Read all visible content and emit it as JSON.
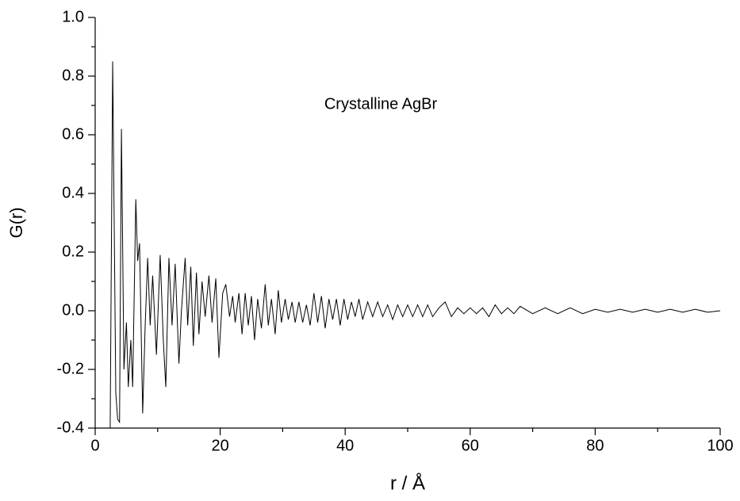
{
  "chart_data": {
    "type": "line",
    "annotation": "Crystalline AgBr",
    "x_label": "r / Å",
    "y_label": "G(r)",
    "color": "#000000",
    "xlim": [
      0,
      100
    ],
    "ylim": [
      -0.4,
      1.0
    ],
    "xticks": [
      0,
      20,
      40,
      60,
      80,
      100
    ],
    "xminorticks": [
      10,
      30,
      50,
      70,
      90
    ],
    "yticks": [
      -0.4,
      -0.2,
      {
        "value": 0,
        "label": "0.0"
      },
      0.2,
      0.4,
      0.6,
      0.8,
      {
        "value": 1,
        "label": "1.0"
      }
    ],
    "yminorticks": [
      -0.3,
      -0.1,
      0.1,
      0.3,
      0.5,
      0.7,
      0.9
    ],
    "x": [
      2.4,
      2.8,
      3.3,
      3.6,
      3.9,
      4.2,
      4.6,
      5.0,
      5.3,
      5.7,
      6.0,
      6.5,
      6.8,
      7.1,
      7.6,
      8.0,
      8.4,
      8.8,
      9.2,
      9.8,
      10.4,
      10.9,
      11.3,
      11.8,
      12.3,
      12.8,
      13.4,
      13.8,
      14.4,
      14.8,
      15.3,
      15.7,
      16.2,
      16.6,
      17.1,
      17.6,
      18.2,
      18.7,
      19.3,
      19.8,
      20.4,
      20.9,
      21.5,
      22.0,
      22.4,
      23.0,
      23.5,
      24.0,
      24.5,
      25.0,
      25.5,
      26.0,
      26.6,
      27.2,
      27.7,
      28.2,
      28.8,
      29.3,
      29.8,
      30.4,
      30.9,
      31.5,
      32.0,
      32.6,
      33.2,
      33.8,
      34.4,
      35.0,
      35.6,
      36.2,
      36.8,
      37.4,
      38.0,
      38.6,
      39.2,
      39.8,
      40.4,
      41.0,
      41.6,
      42.2,
      42.8,
      43.6,
      44.4,
      45.2,
      46.0,
      46.8,
      47.6,
      48.4,
      49.2,
      50.0,
      50.8,
      51.6,
      52.4,
      53.2,
      54.0,
      55.0,
      56.0,
      57.0,
      58.0,
      59.0,
      60.0,
      61.0,
      62.0,
      63.0,
      64.0,
      65.0,
      66.0,
      67.0,
      68.0,
      70,
      72,
      74,
      76,
      78,
      80,
      82,
      84,
      86,
      88,
      90,
      92,
      94,
      96,
      98,
      100
    ],
    "values": [
      -0.4,
      0.85,
      -0.28,
      -0.37,
      -0.38,
      0.62,
      -0.2,
      -0.04,
      -0.26,
      -0.1,
      -0.26,
      0.38,
      0.17,
      0.23,
      -0.35,
      -0.05,
      0.18,
      -0.05,
      0.12,
      -0.15,
      0.19,
      -0.1,
      -0.26,
      0.18,
      -0.05,
      0.16,
      -0.18,
      0.0,
      0.18,
      -0.05,
      0.15,
      -0.12,
      0.13,
      -0.08,
      0.1,
      -0.02,
      0.12,
      -0.04,
      0.11,
      -0.16,
      0.06,
      0.09,
      -0.02,
      0.05,
      -0.04,
      0.06,
      -0.08,
      0.06,
      -0.05,
      0.05,
      -0.1,
      0.04,
      -0.06,
      0.09,
      -0.05,
      0.04,
      -0.08,
      0.07,
      -0.04,
      0.04,
      -0.03,
      0.03,
      -0.04,
      0.03,
      -0.04,
      0.02,
      -0.05,
      0.06,
      -0.04,
      0.05,
      -0.06,
      0.04,
      -0.03,
      0.04,
      -0.05,
      0.04,
      -0.03,
      0.03,
      -0.02,
      0.04,
      -0.03,
      0.03,
      -0.02,
      0.03,
      -0.02,
      0.02,
      -0.03,
      0.02,
      -0.02,
      0.02,
      -0.02,
      0.02,
      -0.02,
      0.02,
      -0.02,
      0.01,
      0.03,
      -0.02,
      0.01,
      -0.01,
      0.01,
      -0.01,
      0.01,
      -0.02,
      0.02,
      -0.01,
      0.01,
      -0.01,
      0.015,
      -0.01,
      0.01,
      -0.01,
      0.01,
      -0.01,
      0.005,
      -0.005,
      0.005,
      -0.005,
      0.005,
      -0.005,
      0.005,
      -0.005,
      0.005,
      -0.005,
      0.0
    ]
  }
}
